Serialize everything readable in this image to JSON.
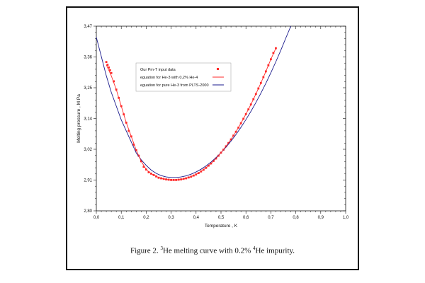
{
  "chart_data": {
    "type": "scatter",
    "title": "",
    "xlabel": "Temperature , K",
    "ylabel": "Melting pressure , M Pa",
    "xlim": [
      0.0,
      1.0
    ],
    "ylim": [
      2.8,
      3.47
    ],
    "x_ticks": [
      "0,0",
      "0,1",
      "0,2",
      "0,3",
      "0,4",
      "0,5",
      "0,6",
      "0,7",
      "0,8",
      "0,9",
      "1,0"
    ],
    "y_ticks": [
      "2,80",
      "2,91",
      "3,02",
      "3,14",
      "3,25",
      "3,36",
      "3,47"
    ],
    "legend_position": "top-left",
    "series": [
      {
        "name": "Our Pm-T input data",
        "kind": "points",
        "color": "#ff2a2a",
        "x": [
          0.04,
          0.045,
          0.05,
          0.055,
          0.06,
          0.07,
          0.08,
          0.09,
          0.1,
          0.11,
          0.12,
          0.13,
          0.14,
          0.15,
          0.16,
          0.17,
          0.18,
          0.19,
          0.2,
          0.21,
          0.22,
          0.23,
          0.24,
          0.25,
          0.26,
          0.27,
          0.28,
          0.29,
          0.3,
          0.31,
          0.32,
          0.33,
          0.34,
          0.35,
          0.36,
          0.37,
          0.38,
          0.39,
          0.4,
          0.41,
          0.42,
          0.43,
          0.44,
          0.45,
          0.46,
          0.47,
          0.48,
          0.49,
          0.5,
          0.51,
          0.52,
          0.53,
          0.54,
          0.55,
          0.56,
          0.57,
          0.58,
          0.59,
          0.6,
          0.61,
          0.62,
          0.63,
          0.64,
          0.65,
          0.66,
          0.67,
          0.68,
          0.69,
          0.7,
          0.71,
          0.72
        ],
        "y": [
          3.34,
          3.33,
          3.32,
          3.31,
          3.3,
          3.27,
          3.24,
          3.21,
          3.18,
          3.15,
          3.12,
          3.09,
          3.07,
          3.04,
          3.02,
          3.0,
          2.98,
          2.96,
          2.95,
          2.94,
          2.935,
          2.93,
          2.925,
          2.92,
          2.918,
          2.916,
          2.914,
          2.913,
          2.912,
          2.912,
          2.912,
          2.913,
          2.914,
          2.916,
          2.918,
          2.921,
          2.924,
          2.928,
          2.932,
          2.937,
          2.943,
          2.949,
          2.956,
          2.964,
          2.972,
          2.981,
          2.99,
          3.0,
          3.011,
          3.022,
          3.034,
          3.046,
          3.059,
          3.073,
          3.087,
          3.102,
          3.118,
          3.134,
          3.151,
          3.168,
          3.186,
          3.205,
          3.224,
          3.244,
          3.264,
          3.285,
          3.306,
          3.328,
          3.35,
          3.373,
          3.39
        ]
      },
      {
        "name": "eguation for He-3 with 0,2% He-4",
        "kind": "line",
        "color": "#ff2a2a",
        "x": [
          0.04,
          0.06,
          0.08,
          0.1,
          0.12,
          0.14,
          0.16,
          0.18,
          0.2,
          0.22,
          0.24,
          0.26,
          0.28,
          0.3,
          0.32,
          0.34,
          0.36,
          0.38,
          0.4,
          0.42,
          0.44,
          0.46,
          0.48,
          0.5,
          0.52,
          0.54,
          0.56,
          0.58,
          0.6,
          0.62,
          0.64,
          0.66,
          0.68,
          0.7,
          0.72
        ],
        "y": [
          3.33,
          3.29,
          3.24,
          3.18,
          3.12,
          3.07,
          3.02,
          2.98,
          2.95,
          2.935,
          2.925,
          2.918,
          2.914,
          2.912,
          2.912,
          2.914,
          2.918,
          2.924,
          2.932,
          2.943,
          2.956,
          2.972,
          2.99,
          3.011,
          3.034,
          3.059,
          3.087,
          3.118,
          3.151,
          3.186,
          3.224,
          3.264,
          3.306,
          3.35,
          3.39
        ]
      },
      {
        "name": "eguation for pure He-3 from PLTS-2000",
        "kind": "line",
        "color": "#1a1a8c",
        "x": [
          0.0,
          0.02,
          0.04,
          0.06,
          0.08,
          0.1,
          0.12,
          0.14,
          0.16,
          0.18,
          0.2,
          0.22,
          0.24,
          0.26,
          0.28,
          0.3,
          0.32,
          0.34,
          0.36,
          0.38,
          0.4,
          0.42,
          0.44,
          0.46,
          0.48,
          0.5,
          0.52,
          0.54,
          0.56,
          0.58,
          0.6,
          0.62,
          0.64,
          0.66,
          0.68,
          0.7,
          0.72,
          0.74,
          0.76,
          0.78
        ],
        "y": [
          3.43,
          3.36,
          3.29,
          3.23,
          3.18,
          3.13,
          3.09,
          3.05,
          3.01,
          2.985,
          2.965,
          2.948,
          2.936,
          2.928,
          2.923,
          2.921,
          2.921,
          2.923,
          2.927,
          2.933,
          2.941,
          2.951,
          2.963,
          2.977,
          2.993,
          3.011,
          3.031,
          3.053,
          3.077,
          3.103,
          3.131,
          3.161,
          3.193,
          3.227,
          3.263,
          3.301,
          3.341,
          3.383,
          3.427,
          3.47
        ]
      }
    ]
  },
  "caption": {
    "prefix": "Figure 2. ",
    "sup1": "3",
    "middle": "He melting curve with 0.2%  ",
    "sup2": "4",
    "suffix": "He impurity."
  }
}
